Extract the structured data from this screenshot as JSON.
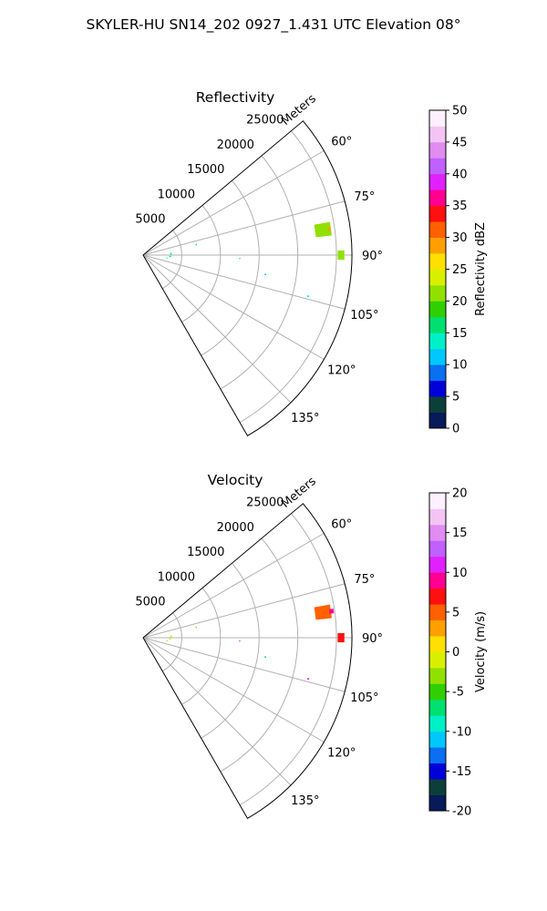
{
  "figure_title": "SKYLER-HU  SN14_202  0927_1.431 UTC Elevation 08°",
  "chart_data": [
    {
      "type": "polar_sector",
      "title": "Reflectivity",
      "range_label": "Meters",
      "range_ticks": [
        5000,
        10000,
        15000,
        20000,
        25000
      ],
      "range_max": 27000,
      "azimuth_range_deg": [
        50,
        150
      ],
      "azimuth_ticks": [
        "60°",
        "75°",
        "90°",
        "105°",
        "120°",
        "135°"
      ],
      "grid": true,
      "colorbar": {
        "label": "Reflectivity dBZ",
        "range": [
          0,
          50
        ],
        "ticks": [
          0,
          5,
          10,
          15,
          20,
          25,
          30,
          35,
          40,
          45,
          50
        ],
        "stops": [
          "#071a5a",
          "#0c3f3a",
          "#0000d8",
          "#0a6ff0",
          "#00c8ff",
          "#00f0c8",
          "#00e070",
          "#30d000",
          "#90e000",
          "#d8f000",
          "#ffe000",
          "#ffa000",
          "#ff6000",
          "#ff1010",
          "#ff0090",
          "#e020ff",
          "#c060ff",
          "#e08cf0",
          "#f4c4f4",
          "#fff0ff"
        ]
      },
      "echoes": [
        {
          "az": 82,
          "r": 23500,
          "w": 4.0,
          "d": 2000,
          "value": 20
        },
        {
          "az": 90,
          "r": 25600,
          "w": 2.5,
          "d": 800,
          "value": 22
        },
        {
          "az": 82,
          "r": 24300,
          "w": 1.0,
          "d": 300,
          "value": 28
        },
        {
          "az": 104,
          "r": 22000,
          "w": 0.4,
          "d": 150,
          "value": 13
        },
        {
          "az": 99,
          "r": 16000,
          "w": 0.4,
          "d": 150,
          "value": 12
        },
        {
          "az": 92,
          "r": 12500,
          "w": 0.3,
          "d": 100,
          "value": 10
        },
        {
          "az": 79,
          "r": 7000,
          "w": 0.8,
          "d": 100,
          "value": 11
        },
        {
          "az": 87,
          "r": 3600,
          "w": 2.5,
          "d": 150,
          "value": 14
        },
        {
          "az": 93,
          "r": 3500,
          "w": 1.5,
          "d": 150,
          "value": 15
        },
        {
          "az": 97,
          "r": 3100,
          "w": 1.0,
          "d": 100,
          "value": 13
        }
      ]
    },
    {
      "type": "polar_sector",
      "title": "Velocity",
      "range_label": "Meters",
      "range_ticks": [
        5000,
        10000,
        15000,
        20000,
        25000
      ],
      "range_max": 27000,
      "azimuth_range_deg": [
        50,
        150
      ],
      "azimuth_ticks": [
        "60°",
        "75°",
        "90°",
        "105°",
        "120°",
        "135°"
      ],
      "grid": true,
      "colorbar": {
        "label": "Velocity (m/s)",
        "range": [
          -20,
          20
        ],
        "ticks": [
          -20,
          -15,
          -10,
          -5,
          0,
          5,
          10,
          15,
          20
        ],
        "stops": [
          "#071a5a",
          "#0c3f3a",
          "#0000d8",
          "#0a6ff0",
          "#00c8ff",
          "#00f0c8",
          "#00e070",
          "#30d000",
          "#90e000",
          "#d8f000",
          "#ffe000",
          "#ffa000",
          "#ff6000",
          "#ff1010",
          "#ff0090",
          "#e020ff",
          "#c060ff",
          "#e08cf0",
          "#f4c4f4",
          "#fff0ff"
        ]
      },
      "echoes": [
        {
          "az": 82,
          "r": 23500,
          "w": 4.0,
          "d": 2000,
          "value": 4
        },
        {
          "az": 90,
          "r": 25600,
          "w": 2.5,
          "d": 800,
          "value": 6
        },
        {
          "az": 82,
          "r": 24600,
          "w": 1.2,
          "d": 500,
          "value": 8
        },
        {
          "az": 104,
          "r": 22000,
          "w": 0.4,
          "d": 150,
          "value": 10
        },
        {
          "az": 99,
          "r": 16000,
          "w": 0.4,
          "d": 150,
          "value": -7
        },
        {
          "az": 92,
          "r": 12500,
          "w": 0.3,
          "d": 100,
          "value": 10
        },
        {
          "az": 79,
          "r": 7000,
          "w": 0.8,
          "d": 100,
          "value": 2
        },
        {
          "az": 87,
          "r": 3600,
          "w": 2.5,
          "d": 150,
          "value": 0
        },
        {
          "az": 93,
          "r": 3500,
          "w": 1.5,
          "d": 150,
          "value": -2
        },
        {
          "az": 97,
          "r": 3100,
          "w": 1.0,
          "d": 100,
          "value": -4
        }
      ]
    }
  ]
}
